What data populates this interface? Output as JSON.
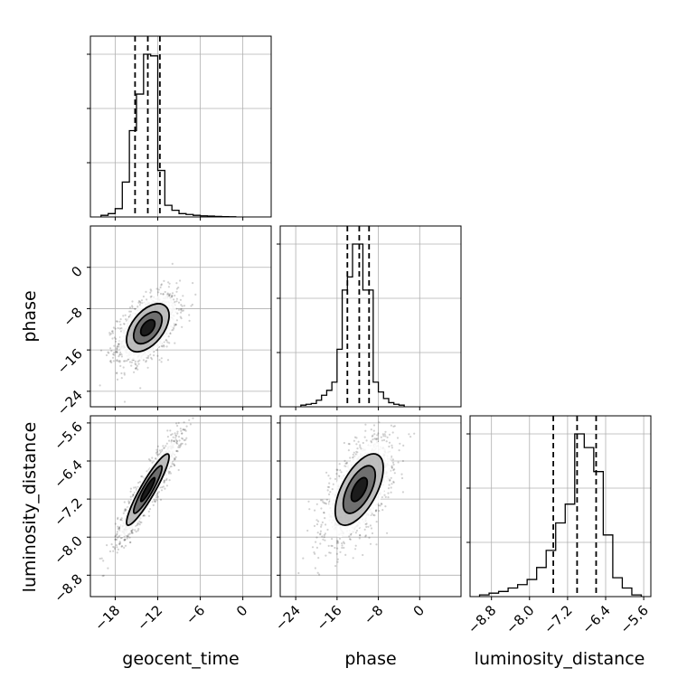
{
  "chart_data": {
    "type": "corner",
    "grid": true,
    "parameters": [
      {
        "name": "geocent_time",
        "median": -13.4,
        "q16": -15.2,
        "q84": -11.7
      },
      {
        "name": "phase",
        "median": -11.7,
        "q16": -14.0,
        "q84": -9.8
      },
      {
        "name": "luminosity_distance",
        "median": -7.0,
        "q16": -7.5,
        "q84": -6.6
      }
    ],
    "axes": {
      "geocent_time": {
        "label": "geocent_time",
        "range": [
          -21.5,
          4.0
        ],
        "ticks": [
          -18,
          -12,
          -6,
          0
        ],
        "tick_labels": [
          "−18",
          "−12",
          "−6",
          "0"
        ]
      },
      "phase": {
        "label": "phase",
        "range": [
          -27.0,
          8.0
        ],
        "ticks": [
          -24,
          -16,
          -8,
          0
        ],
        "tick_labels": [
          "−24",
          "−16",
          "−8",
          "0"
        ]
      },
      "luminosity_distance": {
        "label": "luminosity_distance",
        "range": [
          -9.25,
          -5.45
        ],
        "ticks": [
          -8.8,
          -8.0,
          -7.2,
          -6.4,
          -5.6
        ],
        "tick_labels": [
          "−8.8",
          "−8.0",
          "−7.2",
          "−6.4",
          "−5.6"
        ]
      }
    },
    "histograms": {
      "geocent_time": {
        "bin_edges": [
          -20.0,
          -19.0,
          -18.0,
          -17.0,
          -16.0,
          -15.0,
          -14.0,
          -13.0,
          -12.0,
          -11.0,
          -10.0,
          -9.0,
          -8.0,
          -7.0,
          -6.0,
          -5.0,
          -4.0,
          -3.0,
          -2.0,
          -1.0
        ],
        "counts": [
          0.01,
          0.02,
          0.05,
          0.21,
          0.52,
          0.74,
          0.98,
          0.97,
          0.28,
          0.07,
          0.04,
          0.02,
          0.015,
          0.01,
          0.007,
          0.005,
          0.003,
          0.002,
          0.001
        ]
      },
      "phase": {
        "bin_edges": [
          -23.0,
          -22.0,
          -21.0,
          -20.0,
          -19.0,
          -18.0,
          -17.0,
          -16.0,
          -15.0,
          -14.0,
          -13.0,
          -12.0,
          -11.0,
          -10.0,
          -9.0,
          -8.0,
          -7.0,
          -6.0,
          -5.0,
          -4.0,
          -3.0
        ],
        "counts": [
          0.01,
          0.015,
          0.02,
          0.04,
          0.07,
          0.1,
          0.15,
          0.35,
          0.71,
          0.79,
          0.99,
          0.99,
          0.71,
          0.71,
          0.15,
          0.09,
          0.05,
          0.025,
          0.015,
          0.01
        ]
      },
      "luminosity_distance": {
        "bin_edges": [
          -9.05,
          -8.85,
          -8.65,
          -8.45,
          -8.25,
          -8.05,
          -7.85,
          -7.65,
          -7.45,
          -7.25,
          -7.05,
          -6.85,
          -6.65,
          -6.45,
          -6.25,
          -6.05,
          -5.85,
          -5.65
        ],
        "counts": [
          0.01,
          0.02,
          0.03,
          0.05,
          0.07,
          0.1,
          0.17,
          0.27,
          0.43,
          0.54,
          0.95,
          0.87,
          0.73,
          0.36,
          0.11,
          0.05,
          0.01
        ]
      }
    },
    "scatter_2d": [
      {
        "x": "geocent_time",
        "y": "phase",
        "x_center": -13.4,
        "y_center": -11.7,
        "x_sd": 2.0,
        "y_sd": 3.1,
        "correlation": 0.5
      },
      {
        "x": "geocent_time",
        "y": "luminosity_distance",
        "x_center": -13.4,
        "y_center": -7.0,
        "x_sd": 2.0,
        "y_sd": 0.5,
        "correlation": 0.92
      },
      {
        "x": "phase",
        "y": "luminosity_distance",
        "x_center": -11.7,
        "y_center": -7.0,
        "x_sd": 3.1,
        "y_sd": 0.5,
        "correlation": 0.6
      }
    ],
    "contour_levels_sigma": [
      0.5,
      1.0,
      1.5,
      2.0
    ]
  }
}
